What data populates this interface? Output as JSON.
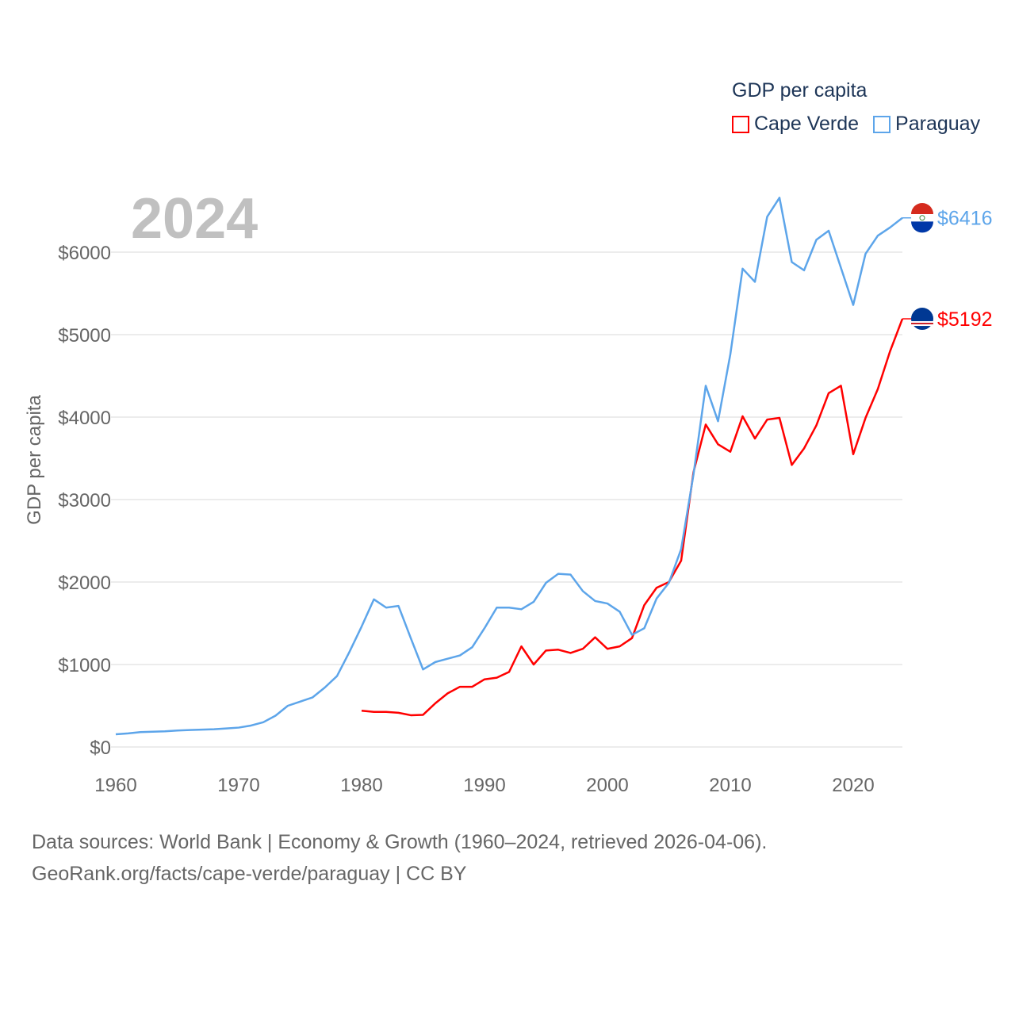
{
  "chart_data": {
    "type": "line",
    "title": "GDP per capita",
    "year_label": "2024",
    "xlabel": "",
    "ylabel": "GDP per capita",
    "xlim": [
      1960,
      2024
    ],
    "ylim": [
      0,
      6800
    ],
    "x_ticks": [
      1960,
      1970,
      1980,
      1990,
      2000,
      2010,
      2020
    ],
    "x_tick_labels": [
      "1960",
      "1970",
      "1980",
      "1990",
      "2000",
      "2010",
      "2020"
    ],
    "y_ticks": [
      0,
      1000,
      2000,
      3000,
      4000,
      5000,
      6000
    ],
    "y_tick_labels": [
      "$0",
      "$1000",
      "$2000",
      "$3000",
      "$4000",
      "$5000",
      "$6000"
    ],
    "grid": true,
    "legend_placement": "top-right",
    "series": [
      {
        "name": "Cape Verde",
        "color": "#ff0000",
        "end_label": "$5192",
        "start_year": 1980,
        "values": [
          440,
          425,
          425,
          415,
          385,
          390,
          530,
          650,
          730,
          730,
          820,
          840,
          910,
          1220,
          1000,
          1170,
          1180,
          1140,
          1190,
          1330,
          1190,
          1220,
          1320,
          1720,
          1930,
          2000,
          2260,
          3330,
          3910,
          3670,
          3580,
          4010,
          3740,
          3970,
          3990,
          3420,
          3620,
          3900,
          4290,
          4380,
          3550,
          3990,
          4340,
          4800,
          5192
        ]
      },
      {
        "name": "Paraguay",
        "color": "#5da5ea",
        "end_label": "$6416",
        "start_year": 1960,
        "values": [
          154,
          165,
          180,
          185,
          190,
          200,
          205,
          210,
          215,
          225,
          235,
          260,
          300,
          380,
          500,
          550,
          600,
          720,
          860,
          1150,
          1460,
          1790,
          1690,
          1710,
          1320,
          940,
          1030,
          1070,
          1110,
          1210,
          1440,
          1690,
          1690,
          1670,
          1760,
          1990,
          2100,
          2090,
          1890,
          1770,
          1740,
          1640,
          1360,
          1440,
          1800,
          1990,
          2400,
          3300,
          4380,
          3950,
          4760,
          5800,
          5640,
          6430,
          6660,
          5880,
          5780,
          6150,
          6260,
          5810,
          5360,
          5980,
          6200,
          6300,
          6416
        ]
      }
    ]
  },
  "footer": {
    "line1": "Data sources: World Bank | Economy & Growth (1960–2024, retrieved 2026-04-06).",
    "line2": "GeoRank.org/facts/cape-verde/paraguay | CC BY"
  }
}
